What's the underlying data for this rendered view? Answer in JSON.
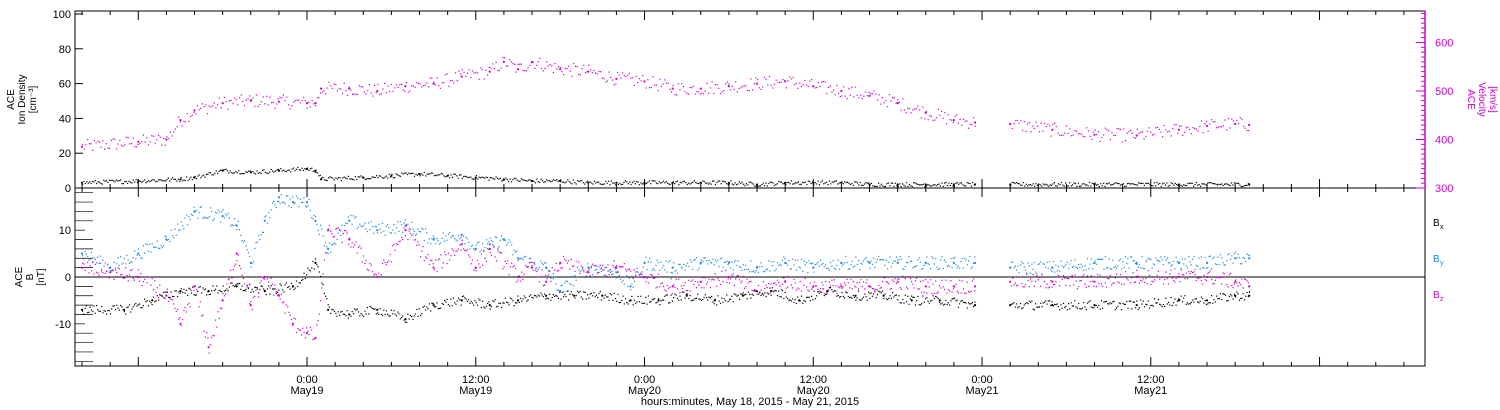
{
  "chart_data": [
    {
      "type": "scatter",
      "panel": "top",
      "ylabel_left": [
        "ACE",
        "Ion Density",
        "[cm⁻³]"
      ],
      "ylabel_right": [
        "ACE",
        "Velocity",
        "[km/s]"
      ],
      "left_axis": {
        "ylim": [
          0,
          100
        ],
        "ticks": [
          0,
          20,
          40,
          60,
          80,
          100
        ],
        "tick_labels": [
          "0",
          "20",
          "40",
          "60",
          "80",
          "100"
        ]
      },
      "right_axis": {
        "ylim": [
          300,
          665
        ],
        "ticks": [
          300,
          400,
          500,
          600
        ],
        "tick_labels": [
          "300",
          "400",
          "500",
          "600"
        ],
        "color": "#cc00cc"
      },
      "series": [
        {
          "axis": "left",
          "color": "#000000",
          "points": [
            [
              -16,
              3
            ],
            [
              -12,
              4
            ],
            [
              -9,
              5
            ],
            [
              -8,
              6
            ],
            [
              -6,
              10
            ],
            [
              -4,
              9
            ],
            [
              -2,
              10
            ],
            [
              0,
              11
            ],
            [
              0.6,
              10
            ],
            [
              1,
              5
            ],
            [
              4,
              6
            ],
            [
              6,
              7
            ],
            [
              8,
              8
            ],
            [
              10,
              7
            ],
            [
              12,
              6
            ],
            [
              14,
              5
            ],
            [
              16,
              4
            ],
            [
              18,
              4
            ],
            [
              20,
              3
            ],
            [
              22,
              3
            ],
            [
              24,
              3
            ],
            [
              26,
              3
            ],
            [
              28,
              3
            ],
            [
              30,
              3
            ],
            [
              32,
              2
            ],
            [
              34,
              3
            ],
            [
              36,
              3
            ],
            [
              38,
              3
            ],
            [
              40,
              2
            ],
            [
              42,
              2
            ],
            [
              44,
              2
            ],
            [
              46,
              2
            ],
            [
              47.5,
              2
            ],
            [
              null,
              null
            ],
            [
              50,
              2
            ],
            [
              56,
              2
            ],
            [
              62,
              2
            ],
            [
              67,
              2
            ]
          ]
        },
        {
          "axis": "right",
          "color": "#cc00cc",
          "points": [
            [
              -16,
              385
            ],
            [
              -12,
              395
            ],
            [
              -10,
              400
            ],
            [
              -9,
              440
            ],
            [
              -8,
              460
            ],
            [
              -6,
              475
            ],
            [
              -4,
              480
            ],
            [
              -2,
              478
            ],
            [
              0,
              475
            ],
            [
              0.6,
              475
            ],
            [
              1,
              505
            ],
            [
              3,
              505
            ],
            [
              5,
              500
            ],
            [
              7,
              510
            ],
            [
              9,
              515
            ],
            [
              11,
              530
            ],
            [
              13,
              540
            ],
            [
              14,
              560
            ],
            [
              15,
              545
            ],
            [
              16,
              560
            ],
            [
              18,
              545
            ],
            [
              20,
              540
            ],
            [
              22,
              525
            ],
            [
              24,
              520
            ],
            [
              26,
              505
            ],
            [
              28,
              505
            ],
            [
              30,
              510
            ],
            [
              32,
              515
            ],
            [
              34,
              520
            ],
            [
              36,
              510
            ],
            [
              38,
              500
            ],
            [
              40,
              490
            ],
            [
              42,
              475
            ],
            [
              44,
              455
            ],
            [
              46,
              440
            ],
            [
              47.5,
              435
            ],
            [
              null,
              null
            ],
            [
              50,
              432
            ],
            [
              53,
              420
            ],
            [
              56,
              410
            ],
            [
              59,
              408
            ],
            [
              62,
              420
            ],
            [
              64,
              428
            ],
            [
              66,
              432
            ],
            [
              67,
              430
            ]
          ]
        }
      ]
    },
    {
      "type": "scatter",
      "panel": "bottom",
      "ylabel_left": [
        "ACE",
        "B",
        "[nT]"
      ],
      "ylim": [
        -19,
        19
      ],
      "ticks": [
        -10,
        0,
        10
      ],
      "tick_labels": [
        "-10",
        "0",
        "10"
      ],
      "zero_line": true,
      "legend": [
        {
          "label": "B",
          "sub": "x",
          "color": "#000000"
        },
        {
          "label": "B",
          "sub": "y",
          "color": "#1e88e5"
        },
        {
          "label": "B",
          "sub": "z",
          "color": "#cc00cc"
        }
      ],
      "series": [
        {
          "name": "Bx",
          "color": "#000000",
          "points": [
            [
              -16,
              -7
            ],
            [
              -13,
              -7
            ],
            [
              -11,
              -5
            ],
            [
              -9,
              -3
            ],
            [
              -7,
              -3
            ],
            [
              -5,
              -2
            ],
            [
              -3,
              -3
            ],
            [
              -1,
              -2
            ],
            [
              0.6,
              3
            ],
            [
              1.5,
              -7
            ],
            [
              3,
              -8
            ],
            [
              5,
              -7
            ],
            [
              7,
              -9
            ],
            [
              9,
              -6
            ],
            [
              11,
              -5
            ],
            [
              13,
              -6
            ],
            [
              15,
              -5
            ],
            [
              17,
              -4
            ],
            [
              19,
              -4
            ],
            [
              21,
              -4
            ],
            [
              23,
              -5
            ],
            [
              25,
              -5
            ],
            [
              27,
              -4
            ],
            [
              29,
              -5
            ],
            [
              31,
              -4
            ],
            [
              33,
              -3
            ],
            [
              35,
              -5
            ],
            [
              37,
              -3
            ],
            [
              39,
              -4
            ],
            [
              41,
              -4
            ],
            [
              43,
              -5
            ],
            [
              45,
              -5
            ],
            [
              47.5,
              -6
            ],
            [
              null,
              null
            ],
            [
              50,
              -6
            ],
            [
              53,
              -6
            ],
            [
              56,
              -6
            ],
            [
              59,
              -6
            ],
            [
              62,
              -5
            ],
            [
              64,
              -5
            ],
            [
              66,
              -4
            ],
            [
              67,
              -4
            ]
          ]
        },
        {
          "name": "By",
          "color": "#1e88e5",
          "points": [
            [
              -16,
              5
            ],
            [
              -14,
              2
            ],
            [
              -12,
              5
            ],
            [
              -10,
              8
            ],
            [
              -8,
              14
            ],
            [
              -6,
              13
            ],
            [
              -5,
              11
            ],
            [
              -4,
              3
            ],
            [
              -3,
              12
            ],
            [
              -2,
              17
            ],
            [
              -1,
              16
            ],
            [
              0,
              16
            ],
            [
              0.6,
              12
            ],
            [
              1.5,
              6
            ],
            [
              3,
              12
            ],
            [
              5,
              10
            ],
            [
              7,
              11
            ],
            [
              9,
              8
            ],
            [
              11,
              9
            ],
            [
              12,
              6
            ],
            [
              13,
              7
            ],
            [
              14,
              8
            ],
            [
              15,
              4
            ],
            [
              17,
              2
            ],
            [
              18,
              -3
            ],
            [
              20,
              2
            ],
            [
              22,
              1
            ],
            [
              23,
              -2
            ],
            [
              24,
              3
            ],
            [
              26,
              2
            ],
            [
              28,
              3
            ],
            [
              30,
              3
            ],
            [
              32,
              2
            ],
            [
              34,
              3
            ],
            [
              36,
              2
            ],
            [
              38,
              3
            ],
            [
              40,
              3
            ],
            [
              42,
              3
            ],
            [
              44,
              3
            ],
            [
              46,
              3
            ],
            [
              47.5,
              3
            ],
            [
              null,
              null
            ],
            [
              50,
              2
            ],
            [
              53,
              2
            ],
            [
              56,
              3
            ],
            [
              59,
              3
            ],
            [
              62,
              3
            ],
            [
              64,
              3
            ],
            [
              66,
              4
            ],
            [
              67,
              4
            ]
          ]
        },
        {
          "name": "Bz",
          "color": "#cc00cc",
          "points": [
            [
              -16,
              2
            ],
            [
              -14,
              1
            ],
            [
              -12,
              0
            ],
            [
              -10,
              -4
            ],
            [
              -9,
              -10
            ],
            [
              -8,
              -2
            ],
            [
              -7,
              -15
            ],
            [
              -6,
              -5
            ],
            [
              -5,
              5
            ],
            [
              -4,
              -6
            ],
            [
              -3,
              0
            ],
            [
              -2,
              -4
            ],
            [
              -1,
              -10
            ],
            [
              0,
              -12
            ],
            [
              0.6,
              -13
            ],
            [
              1.5,
              10
            ],
            [
              3,
              8
            ],
            [
              5,
              0
            ],
            [
              7,
              10
            ],
            [
              9,
              2
            ],
            [
              11,
              7
            ],
            [
              12,
              2
            ],
            [
              13,
              6
            ],
            [
              15,
              0
            ],
            [
              16,
              2
            ],
            [
              17,
              -1
            ],
            [
              18,
              3
            ],
            [
              20,
              1
            ],
            [
              22,
              2
            ],
            [
              24,
              0
            ],
            [
              26,
              -2
            ],
            [
              28,
              -1
            ],
            [
              30,
              0
            ],
            [
              32,
              -3
            ],
            [
              34,
              -1
            ],
            [
              36,
              -2
            ],
            [
              38,
              -2
            ],
            [
              40,
              -2
            ],
            [
              42,
              -1
            ],
            [
              44,
              -2
            ],
            [
              46,
              -2
            ],
            [
              47.5,
              -2
            ],
            [
              null,
              null
            ],
            [
              50,
              -1
            ],
            [
              53,
              -1
            ],
            [
              56,
              -1
            ],
            [
              59,
              0
            ],
            [
              62,
              0
            ],
            [
              64,
              0
            ],
            [
              66,
              -1
            ],
            [
              67,
              -2
            ]
          ]
        }
      ]
    }
  ],
  "x_axis": {
    "range_hours": [
      -16.5,
      79.5
    ],
    "ticks": [
      {
        "hour": 0,
        "line1": "0:00",
        "line2": "May19"
      },
      {
        "hour": 12,
        "line1": "12:00",
        "line2": "May19"
      },
      {
        "hour": 24,
        "line1": "0:00",
        "line2": "May20"
      },
      {
        "hour": 36,
        "line1": "12:00",
        "line2": "May20"
      },
      {
        "hour": 48,
        "line1": "0:00",
        "line2": "May21"
      },
      {
        "hour": 60,
        "line1": "12:00",
        "line2": "May21"
      }
    ],
    "xlabel": "hours:minutes, May 18, 2015 - May 21, 2015"
  }
}
